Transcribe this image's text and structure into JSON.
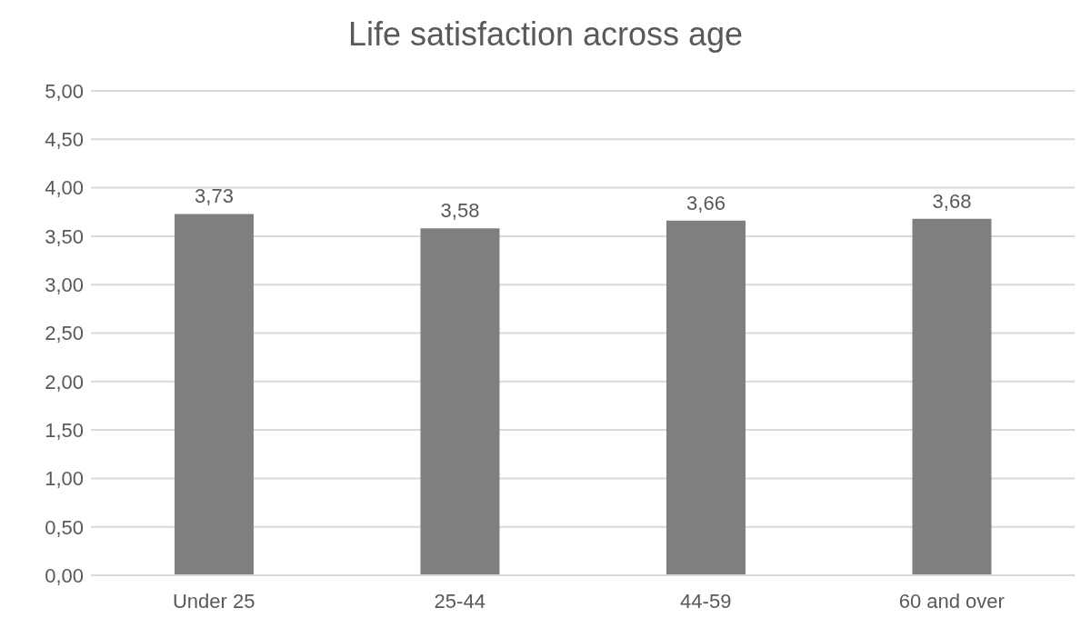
{
  "chart_data": {
    "type": "bar",
    "title": "Life satisfaction across age",
    "categories": [
      "Under 25",
      "25-44",
      "44-59",
      "60 and over"
    ],
    "values": [
      3.73,
      3.58,
      3.66,
      3.68
    ],
    "value_labels": [
      "3,73",
      "3,58",
      "3,66",
      "3,68"
    ],
    "color": "#7f7f7f",
    "ylim": [
      0,
      5
    ],
    "yticks": [
      {
        "value": 0,
        "label": "0,00"
      },
      {
        "value": 0.5,
        "label": "0,50"
      },
      {
        "value": 1,
        "label": "1,00"
      },
      {
        "value": 1.5,
        "label": "1,50"
      },
      {
        "value": 2,
        "label": "2,00"
      },
      {
        "value": 2.5,
        "label": "2,50"
      },
      {
        "value": 3,
        "label": "3,00"
      },
      {
        "value": 3.5,
        "label": "3,50"
      },
      {
        "value": 4,
        "label": "4,00"
      },
      {
        "value": 4.5,
        "label": "4,50"
      },
      {
        "value": 5,
        "label": "5,00"
      }
    ],
    "grid": "y"
  }
}
